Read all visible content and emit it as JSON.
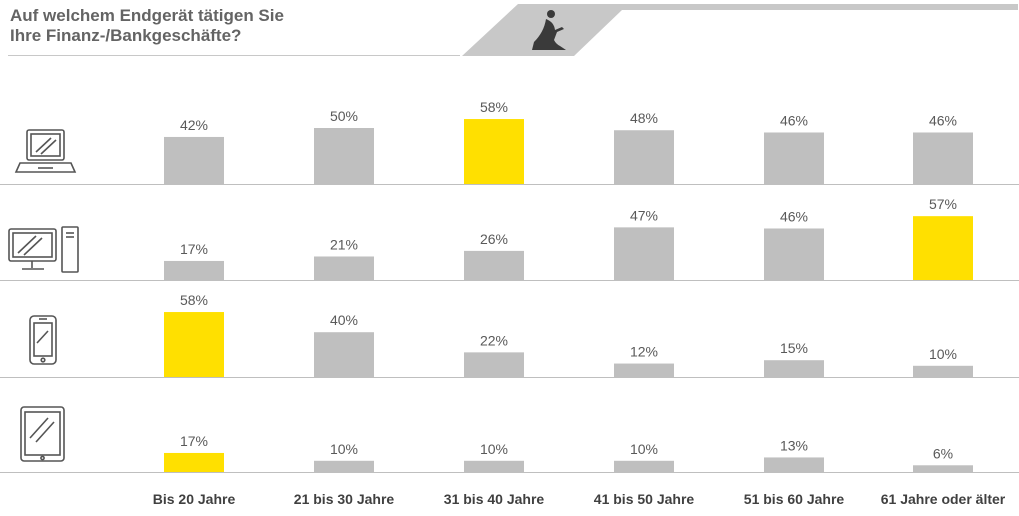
{
  "title": {
    "line1": "Auf welchem Endgerät tätigen Sie",
    "line2": "Ihre Finanz-/Bankgeschäfte?"
  },
  "colors": {
    "bar": "#bfbfbf",
    "highlight": "#ffe000",
    "banner": "#c8c8c8",
    "baseline": "#bfbfbf",
    "label": "#595959"
  },
  "chart_data": {
    "type": "bar",
    "categories": [
      "Bis 20 Jahre",
      "21 bis 30 Jahre",
      "31 bis 40 Jahre",
      "41 bis 50 Jahre",
      "51 bis 60 Jahre",
      "61 Jahre oder älter"
    ],
    "series": [
      {
        "icon": "laptop-icon",
        "values": [
          42,
          50,
          58,
          48,
          46,
          46
        ],
        "labels": [
          "42%",
          "50%",
          "58%",
          "48%",
          "46%",
          "46%"
        ],
        "highlight_index": 2
      },
      {
        "icon": "desktop-icon",
        "values": [
          17,
          21,
          26,
          47,
          46,
          57
        ],
        "labels": [
          "17%",
          "21%",
          "26%",
          "47%",
          "46%",
          "57%"
        ],
        "highlight_index": 5
      },
      {
        "icon": "smartphone-icon",
        "values": [
          58,
          40,
          22,
          12,
          15,
          10
        ],
        "labels": [
          "58%",
          "40%",
          "22%",
          "12%",
          "15%",
          "10%"
        ],
        "highlight_index": 0
      },
      {
        "icon": "tablet-icon",
        "values": [
          17,
          10,
          10,
          10,
          13,
          6
        ],
        "labels": [
          "17%",
          "10%",
          "10%",
          "10%",
          "13%",
          "6%"
        ],
        "highlight_index": 0
      }
    ],
    "ylim": [
      0,
      100
    ],
    "grid": false,
    "legend": "none"
  }
}
